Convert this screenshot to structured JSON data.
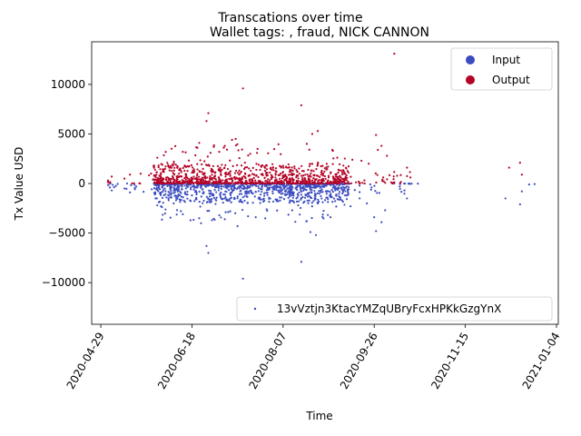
{
  "chart_data": {
    "type": "scatter",
    "title": "Transcations over time",
    "subtitle": "Wallet tags: , fraud, NICK CANNON",
    "xlabel": "Time",
    "ylabel": "Tx Value USD",
    "xlim": [
      "2020-04-24",
      "2021-01-05"
    ],
    "ylim": [
      -14200,
      14300
    ],
    "x_ticks": [
      "2020-04-29",
      "2020-06-18",
      "2020-08-07",
      "2020-09-26",
      "2020-11-15",
      "2021-01-04"
    ],
    "y_ticks": [
      -10000,
      -5000,
      0,
      5000,
      10000
    ],
    "y_tick_labels": [
      "−10000",
      "−5000",
      "0",
      "5000",
      "10000"
    ],
    "legend_placement": [
      "upper right",
      "lower right"
    ],
    "colors": {
      "input": "#3b4cc0",
      "output": "#b40426",
      "axis": "#000000"
    },
    "legends": {
      "type": {
        "entries": [
          {
            "label": "Input",
            "color": "#3b4cc0"
          },
          {
            "label": "Output",
            "color": "#b40426"
          }
        ]
      },
      "wallet": {
        "label": "13vVztjn3KtacYMZqUBryFcxHPKkGzgYnX",
        "color": "#3b4cc0"
      }
    },
    "series": [
      {
        "name": "Input",
        "color": "#3b4cc0",
        "note_clusters": "dense cluster of many small negative values generated from these anchors",
        "points": [
          [
            "2020-05-03",
            -150
          ],
          [
            "2020-05-04",
            -400
          ],
          [
            "2020-05-05",
            -700
          ],
          [
            "2020-05-12",
            -500
          ],
          [
            "2020-05-15",
            -900
          ],
          [
            "2020-05-29",
            -1500
          ],
          [
            "2020-05-30",
            -2200
          ],
          [
            "2020-06-01",
            -900
          ],
          [
            "2020-06-04",
            -1400
          ],
          [
            "2020-06-08",
            -2000
          ],
          [
            "2020-06-13",
            -3100
          ],
          [
            "2020-06-18",
            -1200
          ],
          [
            "2020-06-22",
            -3500
          ],
          [
            "2020-06-23",
            -4000
          ],
          [
            "2020-06-26",
            -6300
          ],
          [
            "2020-06-27",
            -7000
          ],
          [
            "2020-06-29",
            -3700
          ],
          [
            "2020-07-03",
            -3200
          ],
          [
            "2020-07-06",
            -3600
          ],
          [
            "2020-07-09",
            -2800
          ],
          [
            "2020-07-13",
            -4300
          ],
          [
            "2020-07-16",
            -9600
          ],
          [
            "2020-07-23",
            -3400
          ],
          [
            "2020-07-29",
            -2600
          ],
          [
            "2020-08-12",
            -2700
          ],
          [
            "2020-08-17",
            -7900
          ],
          [
            "2020-08-20",
            -3800
          ],
          [
            "2020-08-22",
            -4900
          ],
          [
            "2020-08-25",
            -5200
          ],
          [
            "2020-09-02",
            -3400
          ],
          [
            "2020-09-13",
            -2300
          ],
          [
            "2020-09-18",
            -1500
          ],
          [
            "2020-09-22",
            -2000
          ],
          [
            "2020-09-26",
            -3400
          ],
          [
            "2020-09-27",
            -4800
          ],
          [
            "2020-09-30",
            -3900
          ],
          [
            "2020-10-02",
            -2700
          ],
          [
            "2020-10-10",
            -300
          ],
          [
            "2020-10-14",
            -1500
          ],
          [
            "2020-12-07",
            -1500
          ],
          [
            "2020-12-15",
            -2100
          ],
          [
            "2020-12-16",
            -800
          ],
          [
            "2020-12-20",
            -100
          ],
          [
            "2020-12-23",
            -50
          ]
        ]
      },
      {
        "name": "Output",
        "color": "#b40426",
        "note_clusters": "dense cluster of many small positive values generated from these anchors",
        "points": [
          [
            "2020-05-03",
            300
          ],
          [
            "2020-05-05",
            700
          ],
          [
            "2020-05-12",
            500
          ],
          [
            "2020-05-15",
            900
          ],
          [
            "2020-05-28",
            1800
          ],
          [
            "2020-05-30",
            2600
          ],
          [
            "2020-06-02",
            1200
          ],
          [
            "2020-06-08",
            2000
          ],
          [
            "2020-06-13",
            3200
          ],
          [
            "2020-06-18",
            1100
          ],
          [
            "2020-06-21",
            3600
          ],
          [
            "2020-06-22",
            4100
          ],
          [
            "2020-06-26",
            6300
          ],
          [
            "2020-06-27",
            7100
          ],
          [
            "2020-06-30",
            3700
          ],
          [
            "2020-07-03",
            3200
          ],
          [
            "2020-07-06",
            3800
          ],
          [
            "2020-07-10",
            4400
          ],
          [
            "2020-07-12",
            4500
          ],
          [
            "2020-07-16",
            9600
          ],
          [
            "2020-07-20",
            3000
          ],
          [
            "2020-07-24",
            3500
          ],
          [
            "2020-08-17",
            7900
          ],
          [
            "2020-08-20",
            4000
          ],
          [
            "2020-08-23",
            5000
          ],
          [
            "2020-08-26",
            5300
          ],
          [
            "2020-09-03",
            3400
          ],
          [
            "2020-09-14",
            2400
          ],
          [
            "2020-09-19",
            2300
          ],
          [
            "2020-09-23",
            2000
          ],
          [
            "2020-09-27",
            4900
          ],
          [
            "2020-09-28",
            3400
          ],
          [
            "2020-09-30",
            3800
          ],
          [
            "2020-10-03",
            2800
          ],
          [
            "2020-10-14",
            1600
          ],
          [
            "2020-10-07",
            13100
          ],
          [
            "2020-12-09",
            1600
          ],
          [
            "2020-12-15",
            2100
          ],
          [
            "2020-12-16",
            900
          ]
        ]
      }
    ]
  }
}
